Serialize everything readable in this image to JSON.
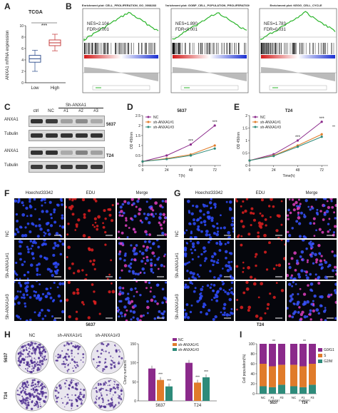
{
  "panels": {
    "A": {
      "letter": "A",
      "title": "TCGA",
      "ylabel": "ANXA1 mRNA expression",
      "sig": "***",
      "chart_data": {
        "type": "box",
        "categories": [
          "Low",
          "High"
        ],
        "series": [
          {
            "values_median": [
              4.2,
              7.0
            ],
            "q1": [
              3.6,
              6.5
            ],
            "q3": [
              4.8,
              7.5
            ],
            "whisker_low": [
              2.0,
              5.6
            ],
            "whisker_high": [
              5.7,
              8.5
            ]
          }
        ],
        "ylim": [
          0,
          10
        ],
        "yticks": [
          "0",
          "2",
          "4",
          "6",
          "8",
          "10"
        ]
      }
    },
    "B": {
      "letter": "B",
      "plots": [
        {
          "title": "Enrichment plot: CELL_PROLIFERATION_GO_0008283",
          "nes": "NES=2.104",
          "fdr": "FDR<0.001"
        },
        {
          "title": "Enrichment plot: GOBP_CELL_POPULATION_PROLIFERATION",
          "nes": "NES=1.890",
          "fdr": "FDR<0.001"
        },
        {
          "title": "Enrichment plot: KEGG_CELL_CYCLE",
          "nes": "NES=1.783",
          "fdr": "FDR=0.031"
        }
      ]
    },
    "C": {
      "letter": "C",
      "group": "Sh-ANXA1",
      "lanes": [
        "ctrl",
        "NC",
        "#1",
        "#2",
        "#3"
      ],
      "rows": [
        {
          "label": "ANXA1",
          "cell": "5637"
        },
        {
          "label": "Tubulin",
          "cell": ""
        },
        {
          "label": "ANXA1",
          "cell": "T24"
        },
        {
          "label": "Tubulin",
          "cell": ""
        }
      ]
    },
    "D": {
      "letter": "D",
      "title": "5637",
      "ylabel": "OD 450nm",
      "xlabel": "T(h)",
      "legend": [
        "NC",
        "sh-ANXA1#1",
        "sh-ANXA1#3"
      ],
      "sig": [
        "***",
        "***"
      ],
      "chart_data": {
        "type": "line",
        "x": [
          0,
          24,
          48,
          72
        ],
        "series": [
          {
            "name": "NC",
            "values": [
              0.2,
              0.5,
              1.05,
              2.0
            ],
            "color": "#8b2a8b"
          },
          {
            "name": "sh-ANXA1#1",
            "values": [
              0.2,
              0.35,
              0.55,
              1.0
            ],
            "color": "#e07b2a"
          },
          {
            "name": "sh-ANXA1#3",
            "values": [
              0.2,
              0.32,
              0.5,
              0.85
            ],
            "color": "#2e8b7a"
          }
        ],
        "ylim": [
          0,
          2.5
        ],
        "yticks": [
          "0",
          "0.5",
          "1",
          "1.5",
          "2",
          "2.5"
        ],
        "xticks": [
          "0",
          "24",
          "48",
          "72"
        ]
      }
    },
    "E": {
      "letter": "E",
      "title": "T24",
      "ylabel": "OD 450nm",
      "xlabel": "Time(h)",
      "legend": [
        "NC",
        "sh-ANXA1#1",
        "sh-ANXA1#3"
      ],
      "sig": [
        "***",
        "***",
        "**"
      ],
      "chart_data": {
        "type": "line",
        "x": [
          0,
          24,
          48,
          72
        ],
        "series": [
          {
            "name": "NC",
            "values": [
              0.2,
              0.45,
              1.0,
              1.75
            ],
            "color": "#8b2a8b"
          },
          {
            "name": "sh-ANXA1#1",
            "values": [
              0.2,
              0.4,
              0.8,
              1.25
            ],
            "color": "#e07b2a"
          },
          {
            "name": "sh-ANXA1#3",
            "values": [
              0.2,
              0.38,
              0.75,
              1.15
            ],
            "color": "#2e8b7a"
          }
        ],
        "ylim": [
          0,
          2.0
        ],
        "yticks": [
          "0",
          "0.5",
          "1",
          "1.5",
          "2"
        ],
        "xticks": [
          "0",
          "24",
          "48",
          "72"
        ]
      }
    },
    "F": {
      "letter": "F",
      "cols": [
        "Hoechst33342",
        "EDU",
        "Merge"
      ],
      "rows": [
        "NC",
        "Sh-ANXA1#1",
        "Sh-ANXA1#3"
      ],
      "cell": "5637"
    },
    "G": {
      "letter": "G",
      "cols": [
        "Hoechst33342",
        "EDU",
        "Merge"
      ],
      "rows": [
        "NC",
        "Sh-ANXA1#1",
        "Sh-ANXA1#3"
      ],
      "cell": "T24"
    },
    "H": {
      "letter": "H",
      "cols": [
        "NC",
        "sh-ANXA1#1",
        "sh-ANXA1#3"
      ],
      "rows": [
        "5637",
        "T24"
      ],
      "ylabel": "Clony numbers",
      "legend": [
        "NC",
        "sh-ANXA1#1",
        "sh-ANXA1#3"
      ],
      "chart_data": {
        "type": "bar",
        "categories": [
          "5637",
          "T24"
        ],
        "series": [
          {
            "name": "NC",
            "values": [
              85,
              100
            ],
            "color": "#8b2a8b"
          },
          {
            "name": "sh-ANXA1#1",
            "values": [
              55,
              48
            ],
            "color": "#e07b2a"
          },
          {
            "name": "sh-ANXA1#3",
            "values": [
              38,
              62
            ],
            "color": "#2e8b7a"
          }
        ],
        "ylim": [
          0,
          150
        ],
        "yticks": [
          "0",
          "50",
          "100",
          "150"
        ]
      }
    },
    "I": {
      "letter": "I",
      "ylabel": "Cell population(%)",
      "legend": [
        "G0/G1",
        "S",
        "G2/M"
      ],
      "group": "sh-ANXA1",
      "sig": [
        "**",
        "**"
      ],
      "chart_data": {
        "type": "stacked-bar",
        "categories": [
          "NC",
          "#1",
          "#3",
          "NC",
          "#1",
          "#3"
        ],
        "groups": [
          "5637",
          "T24"
        ],
        "series": [
          {
            "name": "G0/G1",
            "values": [
              40,
              45,
              42,
              42,
              45,
              40
            ],
            "color": "#8b2a8b"
          },
          {
            "name": "S",
            "values": [
              45,
              42,
              40,
              43,
              42,
              42
            ],
            "color": "#e07b2a"
          },
          {
            "name": "G2/M",
            "values": [
              15,
              13,
              18,
              15,
              13,
              18
            ],
            "color": "#2e8b7a"
          }
        ],
        "ylim": [
          0,
          100
        ],
        "yticks": [
          "0",
          "20",
          "40",
          "60",
          "80",
          "100"
        ]
      }
    }
  }
}
